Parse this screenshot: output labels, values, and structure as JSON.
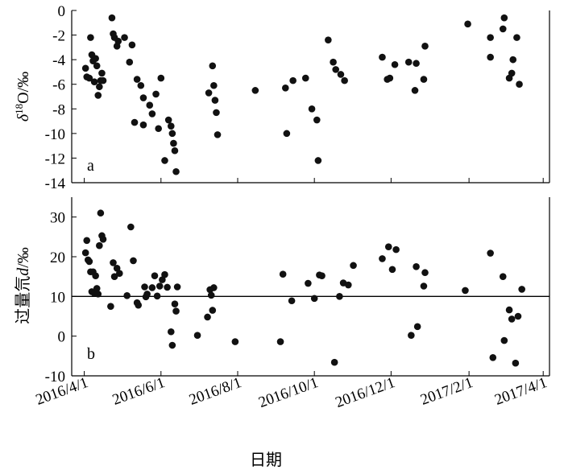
{
  "chart_data": [
    {
      "type": "scatter",
      "panel_label": "a",
      "ylabel": "δ18O/‰",
      "ylabel_parts": {
        "symbol": "δ",
        "sup": "18",
        "rest": "O/‰"
      },
      "ylim": [
        -14,
        0
      ],
      "yticks": [
        "0",
        "-2",
        "-4",
        "-6",
        "-8",
        "-10",
        "-12",
        "-14"
      ],
      "grid": false,
      "points": [
        [
          "2016-04-02",
          -4.7
        ],
        [
          "2016-04-03",
          -5.4
        ],
        [
          "2016-04-05",
          -5.5
        ],
        [
          "2016-04-06",
          -2.2
        ],
        [
          "2016-04-07",
          -3.6
        ],
        [
          "2016-04-08",
          -4.1
        ],
        [
          "2016-04-09",
          -5.8
        ],
        [
          "2016-04-10",
          -3.9
        ],
        [
          "2016-04-11",
          -4.5
        ],
        [
          "2016-04-12",
          -6.9
        ],
        [
          "2016-04-13",
          -6.2
        ],
        [
          "2016-04-14",
          -5.7
        ],
        [
          "2016-04-15",
          -5.1
        ],
        [
          "2016-04-16",
          -5.7
        ],
        [
          "2016-04-23",
          -0.6
        ],
        [
          "2016-04-24",
          -1.9
        ],
        [
          "2016-04-25",
          -2.2
        ],
        [
          "2016-04-27",
          -2.9
        ],
        [
          "2016-04-28",
          -2.5
        ],
        [
          "2016-05-03",
          -2.2
        ],
        [
          "2016-05-07",
          -4.2
        ],
        [
          "2016-05-09",
          -2.8
        ],
        [
          "2016-05-11",
          -9.1
        ],
        [
          "2016-05-13",
          -5.6
        ],
        [
          "2016-05-16",
          -6.1
        ],
        [
          "2016-05-18",
          -7.1
        ],
        [
          "2016-05-18",
          -9.3
        ],
        [
          "2016-05-23",
          -7.7
        ],
        [
          "2016-05-25",
          -8.4
        ],
        [
          "2016-05-28",
          -6.8
        ],
        [
          "2016-05-30",
          -9.6
        ],
        [
          "2016-06-01",
          -5.5
        ],
        [
          "2016-06-04",
          -12.2
        ],
        [
          "2016-06-07",
          -8.9
        ],
        [
          "2016-06-09",
          -9.4
        ],
        [
          "2016-06-10",
          -10.0
        ],
        [
          "2016-06-11",
          -10.8
        ],
        [
          "2016-06-12",
          -11.4
        ],
        [
          "2016-06-13",
          -13.1
        ],
        [
          "2016-07-09",
          -6.7
        ],
        [
          "2016-07-12",
          -4.5
        ],
        [
          "2016-07-13",
          -6.1
        ],
        [
          "2016-07-14",
          -7.3
        ],
        [
          "2016-07-15",
          -8.3
        ],
        [
          "2016-07-16",
          -10.1
        ],
        [
          "2016-08-15",
          -6.5
        ],
        [
          "2016-09-08",
          -6.3
        ],
        [
          "2016-09-09",
          -10.0
        ],
        [
          "2016-09-14",
          -5.7
        ],
        [
          "2016-09-24",
          -5.5
        ],
        [
          "2016-09-29",
          -8.0
        ],
        [
          "2016-10-03",
          -8.9
        ],
        [
          "2016-10-04",
          -12.2
        ],
        [
          "2016-10-12",
          -2.4
        ],
        [
          "2016-10-16",
          -4.2
        ],
        [
          "2016-10-18",
          -4.8
        ],
        [
          "2016-10-22",
          -5.2
        ],
        [
          "2016-10-25",
          -5.7
        ],
        [
          "2016-11-24",
          -3.8
        ],
        [
          "2016-11-28",
          -5.6
        ],
        [
          "2016-11-30",
          -5.5
        ],
        [
          "2016-12-04",
          -4.4
        ],
        [
          "2016-12-15",
          -4.2
        ],
        [
          "2016-12-20",
          -6.5
        ],
        [
          "2016-12-21",
          -4.3
        ],
        [
          "2016-12-27",
          -5.6
        ],
        [
          "2016-12-28",
          -2.9
        ],
        [
          "2017-01-31",
          -1.1
        ],
        [
          "2017-02-18",
          -2.2
        ],
        [
          "2017-02-18",
          -3.8
        ],
        [
          "2017-02-28",
          -1.5
        ],
        [
          "2017-03-01",
          -0.6
        ],
        [
          "2017-03-05",
          -5.5
        ],
        [
          "2017-03-07",
          -5.1
        ],
        [
          "2017-03-08",
          -4.0
        ],
        [
          "2017-03-11",
          -2.2
        ],
        [
          "2017-03-13",
          -6.0
        ]
      ]
    },
    {
      "type": "scatter",
      "panel_label": "b",
      "ylabel": "过量氘d/‰",
      "ylabel_parts": {
        "prefix": "过量氘",
        "var": "d",
        "rest": "/‰"
      },
      "ylim": [
        -10,
        35
      ],
      "yticks": [
        "30",
        "20",
        "10",
        "0",
        "-10"
      ],
      "reference_line_y": 10,
      "grid": false,
      "points": [
        [
          "2016-04-02",
          21.0
        ],
        [
          "2016-04-03",
          24.1
        ],
        [
          "2016-04-04",
          19.2
        ],
        [
          "2016-04-05",
          18.8
        ],
        [
          "2016-04-06",
          16.2
        ],
        [
          "2016-04-07",
          11.2
        ],
        [
          "2016-04-08",
          16.2
        ],
        [
          "2016-04-09",
          10.8
        ],
        [
          "2016-04-10",
          15.2
        ],
        [
          "2016-04-11",
          12.0
        ],
        [
          "2016-04-12",
          10.6
        ],
        [
          "2016-04-13",
          22.8
        ],
        [
          "2016-04-14",
          31.0
        ],
        [
          "2016-04-15",
          25.3
        ],
        [
          "2016-04-16",
          24.4
        ],
        [
          "2016-04-22",
          7.5
        ],
        [
          "2016-04-24",
          18.5
        ],
        [
          "2016-04-25",
          15.0
        ],
        [
          "2016-04-27",
          17.1
        ],
        [
          "2016-04-29",
          15.8
        ],
        [
          "2016-05-05",
          10.2
        ],
        [
          "2016-05-08",
          27.5
        ],
        [
          "2016-05-10",
          19.0
        ],
        [
          "2016-05-13",
          8.4
        ],
        [
          "2016-05-14",
          7.8
        ],
        [
          "2016-05-19",
          12.4
        ],
        [
          "2016-05-20",
          9.9
        ],
        [
          "2016-05-21",
          10.6
        ],
        [
          "2016-05-25",
          12.2
        ],
        [
          "2016-05-27",
          15.2
        ],
        [
          "2016-05-29",
          10.1
        ],
        [
          "2016-05-31",
          12.6
        ],
        [
          "2016-06-02",
          14.2
        ],
        [
          "2016-06-04",
          15.5
        ],
        [
          "2016-06-06",
          12.3
        ],
        [
          "2016-06-09",
          1.1
        ],
        [
          "2016-06-10",
          -2.3
        ],
        [
          "2016-06-12",
          8.1
        ],
        [
          "2016-06-13",
          6.3
        ],
        [
          "2016-06-14",
          12.4
        ],
        [
          "2016-06-30",
          0.2
        ],
        [
          "2016-07-08",
          4.8
        ],
        [
          "2016-07-10",
          11.7
        ],
        [
          "2016-07-11",
          10.3
        ],
        [
          "2016-07-12",
          6.5
        ],
        [
          "2016-07-13",
          12.2
        ],
        [
          "2016-07-30",
          -1.4
        ],
        [
          "2016-09-04",
          -1.4
        ],
        [
          "2016-09-06",
          15.6
        ],
        [
          "2016-09-13",
          8.9
        ],
        [
          "2016-09-26",
          13.3
        ],
        [
          "2016-10-01",
          9.5
        ],
        [
          "2016-10-05",
          15.4
        ],
        [
          "2016-10-07",
          15.2
        ],
        [
          "2016-10-17",
          -6.6
        ],
        [
          "2016-10-21",
          10.0
        ],
        [
          "2016-10-24",
          13.4
        ],
        [
          "2016-10-28",
          12.9
        ],
        [
          "2016-11-01",
          17.8
        ],
        [
          "2016-11-24",
          19.5
        ],
        [
          "2016-11-29",
          22.5
        ],
        [
          "2016-12-02",
          16.8
        ],
        [
          "2016-12-05",
          21.8
        ],
        [
          "2016-12-17",
          0.2
        ],
        [
          "2016-12-21",
          17.5
        ],
        [
          "2016-12-22",
          2.4
        ],
        [
          "2016-12-27",
          12.6
        ],
        [
          "2016-12-28",
          16.0
        ],
        [
          "2017-01-29",
          11.5
        ],
        [
          "2017-02-18",
          20.9
        ],
        [
          "2017-02-20",
          -5.4
        ],
        [
          "2017-02-28",
          15.0
        ],
        [
          "2017-03-01",
          -1.1
        ],
        [
          "2017-03-05",
          6.6
        ],
        [
          "2017-03-07",
          4.3
        ],
        [
          "2017-03-10",
          -6.8
        ],
        [
          "2017-03-12",
          5.0
        ],
        [
          "2017-03-15",
          11.8
        ]
      ]
    }
  ],
  "x_axis": {
    "type": "date",
    "range": [
      "2016-03-22",
      "2017-04-06"
    ],
    "ticks": [
      {
        "date": "2016-04-01",
        "label": "2016/4/1"
      },
      {
        "date": "2016-06-01",
        "label": "2016/6/1"
      },
      {
        "date": "2016-08-01",
        "label": "2016/8/1"
      },
      {
        "date": "2016-10-01",
        "label": "2016/10/1"
      },
      {
        "date": "2016-12-01",
        "label": "2016/12/1"
      },
      {
        "date": "2017-02-01",
        "label": "2017/2/1"
      },
      {
        "date": "2017-04-01",
        "label": "2017/4/1"
      }
    ],
    "xlabel": "日期"
  },
  "marker_color": "#111111"
}
